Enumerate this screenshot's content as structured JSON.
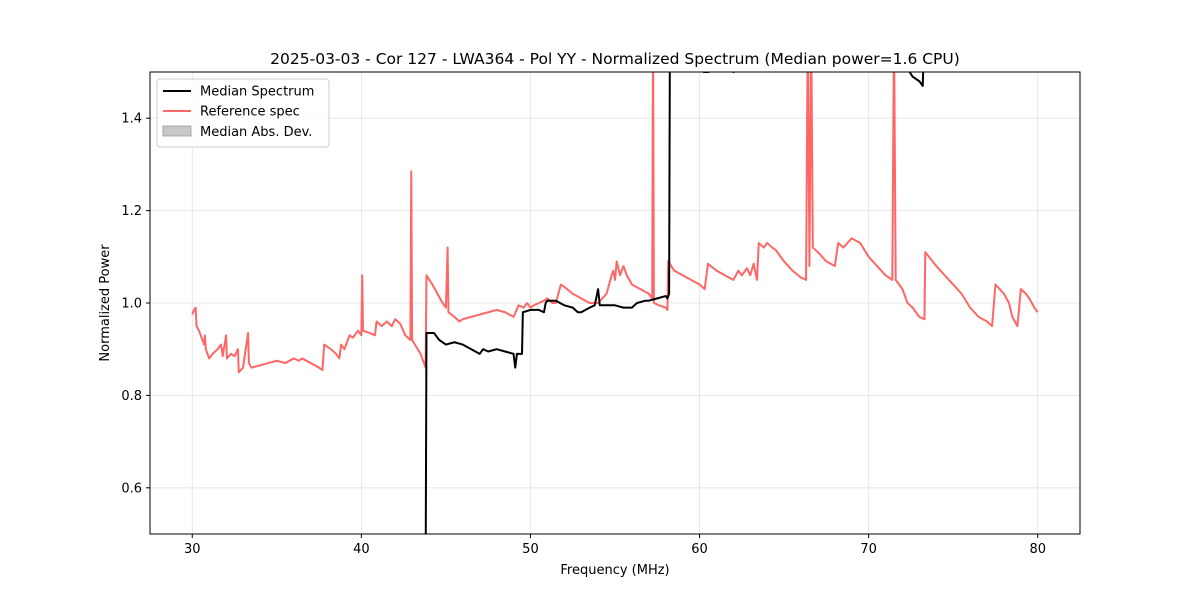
{
  "chart_data": {
    "type": "line",
    "title": "2025-03-03 - Cor 127 - LWA364 - Pol YY - Normalized Spectrum (Median power=1.6 CPU)",
    "xlabel": "Frequency (MHz)",
    "ylabel": "Normalized Power",
    "xlim": [
      27.5,
      82.5
    ],
    "ylim": [
      0.5,
      1.5
    ],
    "xticks": [
      30,
      40,
      50,
      60,
      70,
      80
    ],
    "yticks": [
      0.6,
      0.8,
      1.0,
      1.2,
      1.4
    ],
    "xtick_labels": [
      "30",
      "40",
      "50",
      "60",
      "70",
      "80"
    ],
    "ytick_labels": [
      "0.6",
      "0.8",
      "1.0",
      "1.2",
      "1.4"
    ],
    "grid": true,
    "legend_position": "top-left",
    "legend": [
      {
        "label": "Median Spectrum",
        "kind": "line",
        "color": "#000000"
      },
      {
        "label": "Reference spec",
        "kind": "line",
        "color": "#ff6666"
      },
      {
        "label": "Median Abs. Dev.",
        "kind": "patch",
        "color": "#c8c8c8"
      }
    ],
    "series": [
      {
        "name": "Reference spec",
        "color": "#ff6666",
        "points": [
          [
            30.0,
            0.975
          ],
          [
            30.1,
            0.985
          ],
          [
            30.2,
            0.99
          ],
          [
            30.25,
            0.95
          ],
          [
            30.4,
            0.94
          ],
          [
            30.5,
            0.93
          ],
          [
            30.6,
            0.92
          ],
          [
            30.7,
            0.91
          ],
          [
            30.75,
            0.93
          ],
          [
            30.8,
            0.9
          ],
          [
            31.0,
            0.88
          ],
          [
            31.2,
            0.89
          ],
          [
            31.5,
            0.9
          ],
          [
            31.7,
            0.91
          ],
          [
            31.8,
            0.885
          ],
          [
            32.0,
            0.93
          ],
          [
            32.05,
            0.88
          ],
          [
            32.3,
            0.89
          ],
          [
            32.5,
            0.885
          ],
          [
            32.7,
            0.9
          ],
          [
            32.75,
            0.85
          ],
          [
            33.0,
            0.86
          ],
          [
            33.3,
            0.935
          ],
          [
            33.35,
            0.87
          ],
          [
            33.5,
            0.86
          ],
          [
            34.0,
            0.865
          ],
          [
            34.5,
            0.87
          ],
          [
            35.0,
            0.875
          ],
          [
            35.5,
            0.87
          ],
          [
            36.0,
            0.88
          ],
          [
            36.3,
            0.875
          ],
          [
            36.5,
            0.88
          ],
          [
            37.0,
            0.87
          ],
          [
            37.5,
            0.86
          ],
          [
            37.7,
            0.855
          ],
          [
            37.8,
            0.91
          ],
          [
            38.2,
            0.9
          ],
          [
            38.5,
            0.89
          ],
          [
            38.7,
            0.88
          ],
          [
            38.8,
            0.91
          ],
          [
            39.0,
            0.9
          ],
          [
            39.3,
            0.93
          ],
          [
            39.5,
            0.925
          ],
          [
            39.8,
            0.94
          ],
          [
            40.0,
            0.93
          ],
          [
            40.05,
            1.06
          ],
          [
            40.1,
            0.94
          ],
          [
            40.5,
            0.935
          ],
          [
            40.8,
            0.93
          ],
          [
            40.9,
            0.96
          ],
          [
            41.2,
            0.95
          ],
          [
            41.5,
            0.96
          ],
          [
            41.8,
            0.95
          ],
          [
            42.0,
            0.965
          ],
          [
            42.3,
            0.955
          ],
          [
            42.6,
            0.93
          ],
          [
            42.9,
            0.92
          ],
          [
            42.95,
            1.285
          ],
          [
            43.0,
            0.92
          ],
          [
            43.5,
            0.89
          ],
          [
            43.8,
            0.86
          ],
          [
            43.85,
            1.06
          ],
          [
            44.2,
            1.04
          ],
          [
            44.5,
            1.02
          ],
          [
            44.8,
            1.0
          ],
          [
            45.0,
            0.99
          ],
          [
            45.1,
            1.12
          ],
          [
            45.15,
            0.98
          ],
          [
            45.5,
            0.97
          ],
          [
            45.8,
            0.96
          ],
          [
            46.0,
            0.965
          ],
          [
            46.5,
            0.97
          ],
          [
            47.0,
            0.975
          ],
          [
            47.5,
            0.98
          ],
          [
            48.0,
            0.985
          ],
          [
            48.5,
            0.98
          ],
          [
            49.0,
            0.97
          ],
          [
            49.3,
            0.995
          ],
          [
            49.6,
            0.99
          ],
          [
            49.8,
            1.0
          ],
          [
            50.0,
            0.99
          ],
          [
            50.2,
            0.995
          ],
          [
            50.5,
            1.0
          ],
          [
            50.8,
            1.005
          ],
          [
            51.0,
            1.01
          ],
          [
            51.3,
            1.0
          ],
          [
            51.5,
            1.0
          ],
          [
            51.8,
            1.04
          ],
          [
            52.0,
            1.035
          ],
          [
            52.5,
            1.02
          ],
          [
            53.0,
            1.01
          ],
          [
            53.5,
            1.0
          ],
          [
            54.0,
            1.0
          ],
          [
            54.5,
            1.02
          ],
          [
            54.8,
            1.06
          ],
          [
            54.9,
            1.07
          ],
          [
            55.0,
            1.05
          ],
          [
            55.1,
            1.09
          ],
          [
            55.3,
            1.06
          ],
          [
            55.5,
            1.08
          ],
          [
            55.7,
            1.06
          ],
          [
            56.0,
            1.04
          ],
          [
            56.5,
            1.03
          ],
          [
            57.0,
            1.02
          ],
          [
            57.2,
            1.01
          ],
          [
            57.25,
            1.6
          ],
          [
            57.3,
            1.0
          ],
          [
            57.6,
            0.995
          ],
          [
            58.0,
            0.99
          ],
          [
            58.1,
            0.985
          ],
          [
            58.15,
            1.09
          ],
          [
            58.5,
            1.07
          ],
          [
            59.0,
            1.06
          ],
          [
            59.5,
            1.05
          ],
          [
            60.0,
            1.04
          ],
          [
            60.3,
            1.03
          ],
          [
            60.5,
            1.085
          ],
          [
            61.0,
            1.07
          ],
          [
            61.5,
            1.06
          ],
          [
            62.0,
            1.05
          ],
          [
            62.3,
            1.07
          ],
          [
            62.5,
            1.06
          ],
          [
            62.8,
            1.075
          ],
          [
            63.0,
            1.06
          ],
          [
            63.2,
            1.085
          ],
          [
            63.4,
            1.05
          ],
          [
            63.5,
            1.13
          ],
          [
            63.8,
            1.12
          ],
          [
            64.0,
            1.13
          ],
          [
            64.3,
            1.12
          ],
          [
            64.5,
            1.115
          ],
          [
            65.0,
            1.09
          ],
          [
            65.5,
            1.07
          ],
          [
            66.0,
            1.055
          ],
          [
            66.3,
            1.05
          ],
          [
            66.4,
            1.6
          ],
          [
            66.5,
            1.08
          ],
          [
            66.6,
            1.6
          ],
          [
            66.7,
            1.12
          ],
          [
            67.0,
            1.11
          ],
          [
            67.5,
            1.09
          ],
          [
            68.0,
            1.08
          ],
          [
            68.2,
            1.13
          ],
          [
            68.5,
            1.12
          ],
          [
            69.0,
            1.14
          ],
          [
            69.5,
            1.13
          ],
          [
            70.0,
            1.1
          ],
          [
            70.5,
            1.08
          ],
          [
            71.0,
            1.06
          ],
          [
            71.4,
            1.05
          ],
          [
            71.5,
            1.6
          ],
          [
            71.6,
            1.05
          ],
          [
            72.0,
            1.03
          ],
          [
            72.3,
            1.0
          ],
          [
            72.6,
            0.99
          ],
          [
            73.0,
            0.97
          ],
          [
            73.3,
            0.965
          ],
          [
            73.35,
            1.11
          ],
          [
            74.0,
            1.08
          ],
          [
            74.5,
            1.06
          ],
          [
            75.0,
            1.04
          ],
          [
            75.5,
            1.02
          ],
          [
            76.0,
            0.99
          ],
          [
            76.5,
            0.97
          ],
          [
            77.0,
            0.96
          ],
          [
            77.3,
            0.95
          ],
          [
            77.5,
            1.04
          ],
          [
            78.0,
            1.02
          ],
          [
            78.3,
            1.0
          ],
          [
            78.5,
            0.97
          ],
          [
            78.8,
            0.95
          ],
          [
            79.0,
            1.03
          ],
          [
            79.3,
            1.02
          ],
          [
            79.5,
            1.01
          ],
          [
            79.8,
            0.99
          ],
          [
            80.0,
            0.98
          ]
        ]
      },
      {
        "name": "Median Spectrum",
        "color": "#000000",
        "points": [
          [
            43.8,
            0.4
          ],
          [
            43.85,
            0.935
          ],
          [
            44.0,
            0.935
          ],
          [
            44.3,
            0.935
          ],
          [
            44.6,
            0.92
          ],
          [
            45.0,
            0.91
          ],
          [
            45.5,
            0.915
          ],
          [
            46.0,
            0.91
          ],
          [
            46.5,
            0.9
          ],
          [
            47.0,
            0.89
          ],
          [
            47.2,
            0.9
          ],
          [
            47.5,
            0.895
          ],
          [
            48.0,
            0.9
          ],
          [
            48.5,
            0.895
          ],
          [
            49.0,
            0.89
          ],
          [
            49.1,
            0.86
          ],
          [
            49.2,
            0.89
          ],
          [
            49.5,
            0.89
          ],
          [
            49.55,
            0.98
          ],
          [
            50.0,
            0.985
          ],
          [
            50.5,
            0.985
          ],
          [
            50.8,
            0.98
          ],
          [
            50.9,
            1.0
          ],
          [
            51.0,
            1.005
          ],
          [
            51.5,
            1.005
          ],
          [
            52.0,
            0.995
          ],
          [
            52.5,
            0.99
          ],
          [
            52.8,
            0.98
          ],
          [
            53.0,
            0.98
          ],
          [
            53.5,
            0.99
          ],
          [
            53.8,
            0.995
          ],
          [
            54.0,
            1.03
          ],
          [
            54.1,
            0.995
          ],
          [
            54.5,
            0.995
          ],
          [
            55.0,
            0.995
          ],
          [
            55.5,
            0.99
          ],
          [
            56.0,
            0.99
          ],
          [
            56.3,
            1.0
          ],
          [
            56.8,
            1.005
          ],
          [
            57.0,
            1.005
          ],
          [
            57.5,
            1.01
          ],
          [
            58.0,
            1.015
          ],
          [
            58.1,
            1.01
          ],
          [
            58.2,
            1.02
          ],
          [
            58.25,
            1.6
          ],
          [
            60.2,
            1.6
          ],
          [
            60.25,
            1.5
          ],
          [
            60.5,
            1.5
          ],
          [
            61.5,
            1.51
          ],
          [
            62.0,
            1.5
          ],
          [
            62.4,
            1.51
          ],
          [
            62.5,
            1.6
          ],
          [
            72.2,
            1.6
          ],
          [
            72.25,
            1.51
          ],
          [
            72.6,
            1.49
          ],
          [
            73.0,
            1.48
          ],
          [
            73.2,
            1.47
          ],
          [
            73.3,
            1.6
          ]
        ]
      }
    ]
  }
}
